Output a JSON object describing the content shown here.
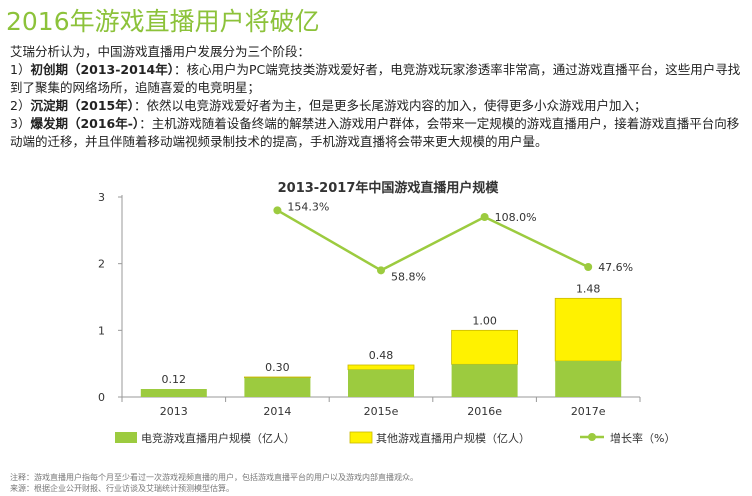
{
  "page": {
    "title": "2016年游戏直播用户将破亿",
    "intro": "艾瑞分析认为，中国游戏直播用户发展分为三个阶段：",
    "stages": [
      {
        "prefix": "1）",
        "name": "初创期（2013-2014年）",
        "text": "：核心用户为PC端竞技类游戏爱好者，电竞游戏玩家渗透率非常高，通过游戏直播平台，这些用户寻找到了聚集的网络场所，追随喜爱的电竞明星；"
      },
      {
        "prefix": "2）",
        "name": "沉淀期（2015年）",
        "text": "：依然以电竞游戏爱好者为主，但是更多长尾游戏内容的加入，使得更多小众游戏用户加入；"
      },
      {
        "prefix": "3）",
        "name": "爆发期（2016年-）",
        "text": "：主机游戏随着设备终端的解禁进入游戏用户群体，会带来一定规模的游戏直播用户，接着游戏直播平台向移动端的迁移，并且伴随着移动端视频录制技术的提高，手机游戏直播将会带来更大规模的用户量。"
      }
    ],
    "note": "注释：游戏直播用户指每个月至少看过一次游戏视频直播的用户，包括游戏直播平台的用户以及游戏内部直播观众。",
    "source": "来源：根据企业公开财报、行业访谈及艾瑞统计预测模型估算。"
  },
  "colors": {
    "esports": "#9ccb3f",
    "other": "#fff200",
    "other_border": "#c9b800",
    "growth": "#9ccb3f",
    "title": "#8cc23a"
  },
  "chart_data": {
    "type": "bar",
    "title": "2013-2017年中国游戏直播用户规模",
    "categories": [
      "2013",
      "2014",
      "2015e",
      "2016e",
      "2017e"
    ],
    "series": [
      {
        "name": "电竞游戏直播用户规模（亿人）",
        "values": [
          0.12,
          0.29,
          0.41,
          0.49,
          0.54
        ]
      },
      {
        "name": "其他游戏直播用户规模（亿人）",
        "values": [
          0,
          0.01,
          0.07,
          0.51,
          0.94
        ]
      }
    ],
    "totals": [
      "0.12",
      "0.30",
      "0.48",
      "1.00",
      "1.48"
    ],
    "line_series": {
      "name": "增长率（%）",
      "values": [
        null,
        2.8,
        1.9,
        2.7,
        1.95
      ],
      "labels": [
        "",
        "154.3%",
        "58.8%",
        "108.0%",
        "47.6%"
      ]
    },
    "ylim": [
      0,
      3
    ],
    "yticks": [
      "0",
      "1",
      "2",
      "3"
    ],
    "legend": "bottom",
    "grid": false
  }
}
